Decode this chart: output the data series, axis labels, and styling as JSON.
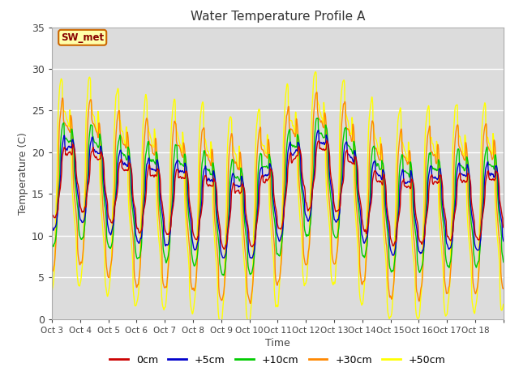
{
  "title": "Water Temperature Profile A",
  "xlabel": "Time",
  "ylabel": "Temperature (C)",
  "ylim": [
    0,
    35
  ],
  "yticks": [
    0,
    5,
    10,
    15,
    20,
    25,
    30,
    35
  ],
  "bg_color": "#dcdcdc",
  "n_days": 16,
  "n_pts_per_day": 144,
  "base_temp": 15.0,
  "annotation_text": "SW_met",
  "annotation_bg": "#ffffaa",
  "annotation_border": "#cc6600",
  "xticklabels": [
    "Oct 3",
    "Oct 4",
    "Oct 5",
    "Oct 6",
    "Oct 7",
    "Oct 8",
    "Oct 9",
    "Oct 10",
    "Oct 11",
    "Oct 12",
    "Oct 13",
    "Oct 14",
    "Oct 15",
    "Oct 16",
    "Oct 17",
    "Oct 18"
  ],
  "legend_entries": [
    "0cm",
    "+5cm",
    "+10cm",
    "+30cm",
    "+50cm"
  ],
  "legend_colors": [
    "#cc0000",
    "#0000cc",
    "#00cc00",
    "#ff8800",
    "#ffff00"
  ]
}
